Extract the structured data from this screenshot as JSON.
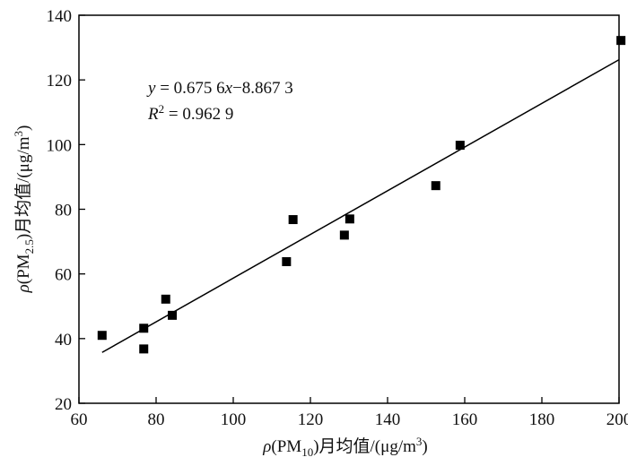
{
  "chart_data": {
    "type": "scatter",
    "title": "",
    "xlabel": {
      "pre": "ρ(PM",
      "sub": "10",
      "post": ")月均值/(μg/m",
      "sup": "3",
      "end": ")"
    },
    "ylabel": {
      "pre": "ρ(PM",
      "sub": "2.5",
      "post": ")月均值/(μg/m",
      "sup": "3",
      "end": ")"
    },
    "xlim": [
      60,
      200
    ],
    "ylim": [
      20,
      140
    ],
    "xticks": [
      60,
      80,
      100,
      120,
      140,
      160,
      180,
      200
    ],
    "yticks": [
      20,
      40,
      60,
      80,
      100,
      120,
      140
    ],
    "grid": false,
    "legend": "none",
    "series": [
      {
        "marker": "square",
        "color": "#000000",
        "points": [
          {
            "x": 66,
            "y": 41
          },
          {
            "x": 76.8,
            "y": 43.2
          },
          {
            "x": 76.8,
            "y": 36.8
          },
          {
            "x": 82.5,
            "y": 52.2
          },
          {
            "x": 84.2,
            "y": 47.2
          },
          {
            "x": 113.8,
            "y": 63.8
          },
          {
            "x": 115.5,
            "y": 76.8
          },
          {
            "x": 128.8,
            "y": 72
          },
          {
            "x": 130.2,
            "y": 77
          },
          {
            "x": 152.5,
            "y": 87.3
          },
          {
            "x": 158.8,
            "y": 99.8
          },
          {
            "x": 200.5,
            "y": 132.2
          }
        ]
      }
    ],
    "fit_line": {
      "slope": 0.6756,
      "intercept": -8.8673,
      "x_range": [
        66,
        200
      ],
      "color": "#000000"
    },
    "annotations": {
      "equation": {
        "y": "y",
        "eq": " = 0.675 6",
        "x": "x",
        "rest": "−8.867 3"
      },
      "r2": {
        "R": "R",
        "sup": "2",
        "rest": " = 0.962 9"
      }
    }
  }
}
